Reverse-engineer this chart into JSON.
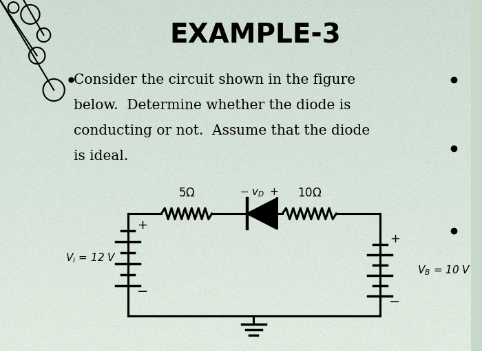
{
  "title": "EXAMPLE-3",
  "description_lines": [
    "Consider the circuit shown in the figure",
    "below.  Determine whether the diode is",
    "conducting or not.  Assume that the diode",
    "is ideal."
  ],
  "bg_color_top": "#c8d8d0",
  "bg_color_mid": "#e8e8f0",
  "bg_color_bot": "#d0d8c8",
  "title_fontsize": 28,
  "desc_fontsize": 14.5,
  "lw": 2.0
}
